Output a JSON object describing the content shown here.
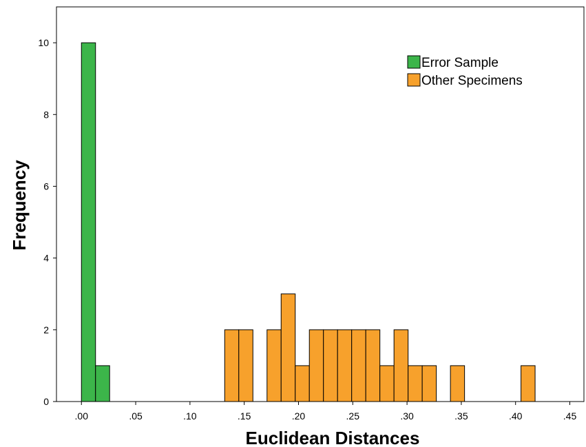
{
  "chart_data": {
    "type": "bar",
    "title": "",
    "xlabel": "Euclidean Distances",
    "ylabel": "Frequency",
    "xlim": [
      -0.023,
      0.463
    ],
    "ylim": [
      0,
      11
    ],
    "bin_width": 0.013,
    "x_ticks": [
      {
        "value": 0.0,
        "label": ".00"
      },
      {
        "value": 0.05,
        "label": ".05"
      },
      {
        "value": 0.1,
        "label": ".10"
      },
      {
        "value": 0.15,
        "label": ".15"
      },
      {
        "value": 0.2,
        "label": ".20"
      },
      {
        "value": 0.25,
        "label": ".25"
      },
      {
        "value": 0.3,
        "label": ".30"
      },
      {
        "value": 0.35,
        "label": ".35"
      },
      {
        "value": 0.4,
        "label": ".40"
      },
      {
        "value": 0.45,
        "label": ".45"
      }
    ],
    "y_ticks": [
      {
        "value": 0,
        "label": "0"
      },
      {
        "value": 2,
        "label": "2"
      },
      {
        "value": 4,
        "label": "4"
      },
      {
        "value": 6,
        "label": "6"
      },
      {
        "value": 8,
        "label": "8"
      },
      {
        "value": 10,
        "label": "10"
      }
    ],
    "legend_position": "top-right",
    "grid": false,
    "series": [
      {
        "name": "Error Sample",
        "color": "#3cb54a",
        "bins": [
          {
            "x": 0.0,
            "count": 10
          },
          {
            "x": 0.013,
            "count": 1
          }
        ]
      },
      {
        "name": "Other Specimens",
        "color": "#f7a12c",
        "bins": [
          {
            "x": 0.132,
            "count": 2
          },
          {
            "x": 0.145,
            "count": 2
          },
          {
            "x": 0.171,
            "count": 2
          },
          {
            "x": 0.184,
            "count": 3
          },
          {
            "x": 0.197,
            "count": 1
          },
          {
            "x": 0.21,
            "count": 2
          },
          {
            "x": 0.223,
            "count": 2
          },
          {
            "x": 0.236,
            "count": 2
          },
          {
            "x": 0.249,
            "count": 2
          },
          {
            "x": 0.262,
            "count": 2
          },
          {
            "x": 0.275,
            "count": 1
          },
          {
            "x": 0.288,
            "count": 2
          },
          {
            "x": 0.301,
            "count": 1
          },
          {
            "x": 0.314,
            "count": 1
          },
          {
            "x": 0.34,
            "count": 1
          },
          {
            "x": 0.405,
            "count": 1
          }
        ]
      }
    ]
  }
}
